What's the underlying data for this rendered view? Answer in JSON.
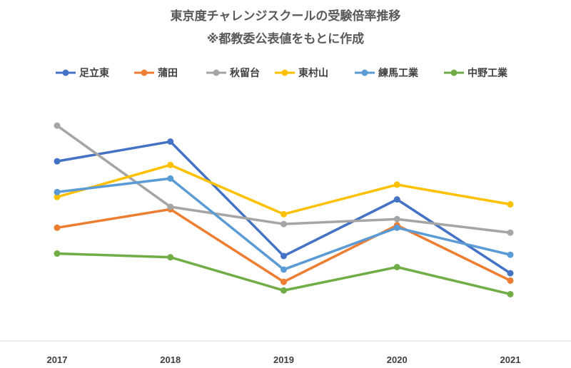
{
  "chart_data": {
    "type": "line",
    "title": "東京度チャレンジスクールの受験倍率推移",
    "subtitle": "※都教委公表値をもとに作成",
    "categories": [
      "2017",
      "2018",
      "2019",
      "2020",
      "2021"
    ],
    "ylim": [
      0.5,
      2.5
    ],
    "grid": false,
    "legend_position": "top",
    "series": [
      {
        "name": "足立東",
        "color": "#4472C4",
        "values": [
          1.96,
          2.12,
          1.19,
          1.65,
          1.05
        ]
      },
      {
        "name": "蒲田",
        "color": "#ED7D31",
        "values": [
          1.42,
          1.57,
          0.98,
          1.44,
          0.99
        ]
      },
      {
        "name": "秋留台",
        "color": "#A5A5A5",
        "values": [
          2.25,
          1.59,
          1.45,
          1.49,
          1.38
        ]
      },
      {
        "name": "東村山",
        "color": "#FFC000",
        "values": [
          1.67,
          1.93,
          1.53,
          1.77,
          1.61
        ]
      },
      {
        "name": "練馬工業",
        "color": "#5B9BD5",
        "values": [
          1.71,
          1.82,
          1.08,
          1.42,
          1.2
        ]
      },
      {
        "name": "中野工業",
        "color": "#70AD47",
        "values": [
          1.21,
          1.18,
          0.91,
          1.1,
          0.88
        ]
      }
    ]
  }
}
